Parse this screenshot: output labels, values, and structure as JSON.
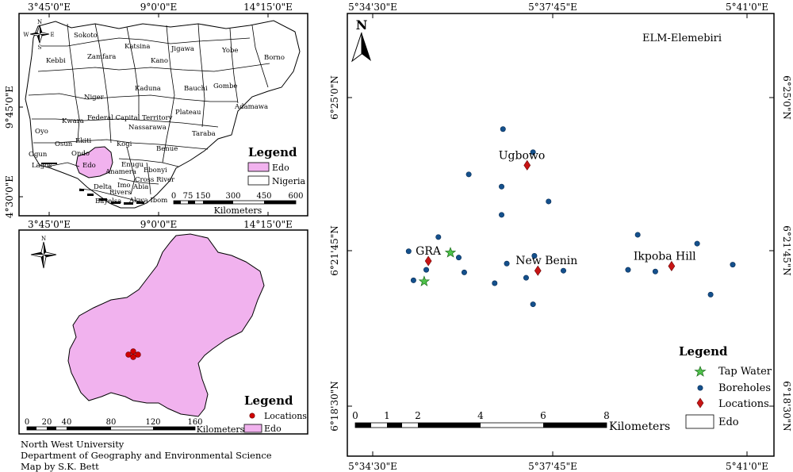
{
  "nigeria_map": {
    "lon_labels": [
      "3°45'0\"E",
      "9°0'0\"E",
      "14°15'0\"E"
    ],
    "lat_labels": [
      "9°45'0\"E",
      "4°30'0\"E"
    ],
    "compass": {
      "n": "N",
      "s": "S",
      "e": "E",
      "w": "W"
    },
    "states": [
      "Sokoto",
      "Katsina",
      "Jigawa",
      "Yobe",
      "Borno",
      "Zamfara",
      "Kano",
      "Kebbi",
      "Kaduna",
      "Bauchi",
      "Gombe",
      "Niger",
      "Adamawa",
      "Plateau",
      "Federal Capital Territory",
      "Kwara",
      "Nassarawa",
      "Oyo",
      "Taraba",
      "Kogi",
      "Osun",
      "Ekiti",
      "Benue",
      "Ondo",
      "Ogun",
      "Lagos",
      "Edo",
      "Anamera",
      "Enugu",
      "Ebonyi",
      "Delta",
      "Imo",
      "Cross River",
      "Abia",
      "Rivers",
      "Bayelsa",
      "Akwa Ibom"
    ],
    "legend": {
      "title": "Legend",
      "items": [
        "Edo",
        "Nigeria"
      ]
    },
    "scale": {
      "ticks": [
        "0",
        "75",
        "150",
        "300",
        "450",
        "600"
      ],
      "unit": "Kilometers"
    }
  },
  "edo_map": {
    "compass": {
      "n": "N"
    },
    "legend": {
      "title": "Legend",
      "items": [
        "Locations",
        "Edo"
      ]
    },
    "scale": {
      "ticks": [
        "0",
        "20",
        "40",
        "80",
        "120",
        "160"
      ],
      "unit": "Kilometers"
    }
  },
  "credits": [
    "North West University",
    "Department of Geography and Environmental Science",
    "Map by S.K. Bett"
  ],
  "study_map": {
    "title": "ELM-Elemebiri",
    "north": "N",
    "lon_labels": [
      "5°34'30\"E",
      "5°37'45\"E",
      "5°41'0\"E"
    ],
    "lat_labels": [
      "6°25'0\"N",
      "6°21'45\"N",
      "6°18'30\"N"
    ],
    "locations": [
      {
        "name": "Ugbowo",
        "x": 5.6197,
        "y": 6.3929
      },
      {
        "name": "GRA",
        "x": 5.5911,
        "y": 6.3593
      },
      {
        "name": "New Benin",
        "x": 5.6228,
        "y": 6.3559
      },
      {
        "name": "Ikpoba Hill",
        "x": 5.6615,
        "y": 6.3575
      }
    ],
    "tap_water": [
      {
        "x": 5.5975,
        "y": 6.3622
      },
      {
        "x": 5.5899,
        "y": 6.3521
      }
    ],
    "boreholes": [
      {
        "x": 5.6127,
        "y": 6.4056
      },
      {
        "x": 5.6214,
        "y": 6.3975
      },
      {
        "x": 5.6028,
        "y": 6.3897
      },
      {
        "x": 5.6123,
        "y": 6.3854
      },
      {
        "x": 5.6259,
        "y": 6.3802
      },
      {
        "x": 5.6123,
        "y": 6.3755
      },
      {
        "x": 5.594,
        "y": 6.3677
      },
      {
        "x": 5.6517,
        "y": 6.3685
      },
      {
        "x": 5.6689,
        "y": 6.3654
      },
      {
        "x": 5.5854,
        "y": 6.3627
      },
      {
        "x": 5.5999,
        "y": 6.3605
      },
      {
        "x": 5.6218,
        "y": 6.3611
      },
      {
        "x": 5.6138,
        "y": 6.3584
      },
      {
        "x": 5.5905,
        "y": 6.3562
      },
      {
        "x": 5.6015,
        "y": 6.3553
      },
      {
        "x": 5.6302,
        "y": 6.3559
      },
      {
        "x": 5.6489,
        "y": 6.3562
      },
      {
        "x": 5.6568,
        "y": 6.3556
      },
      {
        "x": 5.6792,
        "y": 6.358
      },
      {
        "x": 5.5868,
        "y": 6.3525
      },
      {
        "x": 5.6103,
        "y": 6.3515
      },
      {
        "x": 5.6194,
        "y": 6.3534
      },
      {
        "x": 5.6728,
        "y": 6.3475
      },
      {
        "x": 5.6214,
        "y": 6.3441
      }
    ],
    "legend": {
      "title": "Legend",
      "items": [
        "Tap Water",
        "Boreholes",
        "Locations",
        "Edo"
      ]
    },
    "scale": {
      "ticks": [
        "0",
        "1",
        "2",
        "4",
        "6",
        "8"
      ],
      "unit": "Kilometers"
    }
  }
}
